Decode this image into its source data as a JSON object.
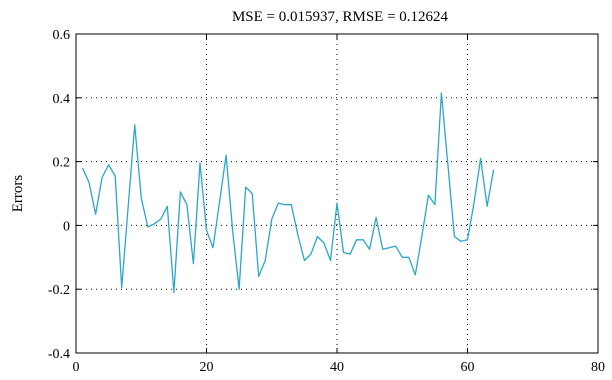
{
  "chart_data": {
    "type": "line",
    "title": "MSE = 0.015937, RMSE = 0.12624",
    "xlabel": "",
    "ylabel": "Errors",
    "xlim": [
      0,
      80
    ],
    "ylim": [
      -0.4,
      0.6
    ],
    "xticks": [
      0,
      20,
      40,
      60,
      80
    ],
    "yticks": [
      -0.4,
      -0.2,
      0,
      0.2,
      0.4,
      0.6
    ],
    "xtick_labels": [
      "0",
      "20",
      "40",
      "60",
      "80"
    ],
    "ytick_labels": [
      "-0.4",
      "-0.2",
      "0",
      "0.2",
      "0.4",
      "0.6"
    ],
    "grid": true,
    "series": [
      {
        "color": "#2aa7c9",
        "x": [
          1,
          2,
          3,
          4,
          5,
          6,
          7,
          8,
          9,
          10,
          11,
          12,
          13,
          14,
          15,
          16,
          17,
          18,
          19,
          20,
          21,
          22,
          23,
          24,
          25,
          26,
          27,
          28,
          29,
          30,
          31,
          32,
          33,
          34,
          35,
          36,
          37,
          38,
          39,
          40,
          41,
          42,
          43,
          44,
          45,
          46,
          47,
          48,
          49,
          50,
          51,
          52,
          53,
          54,
          55,
          56,
          57,
          58,
          59,
          60,
          61,
          62,
          63,
          64
        ],
        "y": [
          0.18,
          0.135,
          0.035,
          0.15,
          0.19,
          0.155,
          -0.195,
          0.06,
          0.315,
          0.085,
          -0.005,
          0.005,
          0.02,
          0.06,
          -0.21,
          0.105,
          0.065,
          -0.12,
          0.195,
          -0.015,
          -0.07,
          0.075,
          0.22,
          -0.015,
          -0.2,
          0.12,
          0.1,
          -0.16,
          -0.11,
          0.02,
          0.07,
          0.065,
          0.065,
          -0.03,
          -0.11,
          -0.09,
          -0.035,
          -0.055,
          -0.11,
          0.07,
          -0.085,
          -0.09,
          -0.045,
          -0.045,
          -0.075,
          0.025,
          -0.075,
          -0.07,
          -0.065,
          -0.1,
          -0.1,
          -0.155,
          -0.035,
          0.095,
          0.065,
          0.415,
          0.19,
          -0.035,
          -0.05,
          -0.045,
          0.07,
          0.21,
          0.06,
          0.175
        ]
      }
    ]
  }
}
